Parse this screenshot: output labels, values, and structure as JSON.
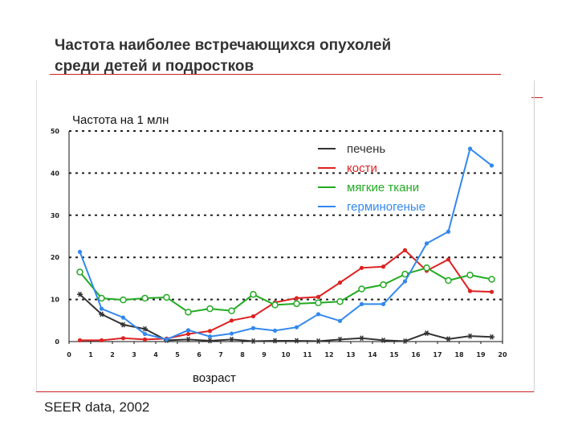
{
  "slide": {
    "title_line1": "Частота наиболее встречающихся опухолей",
    "title_line2": "среди детей и подростков",
    "source": "SEER data, 2002"
  },
  "chart_data": {
    "type": "line",
    "title": "",
    "ylabel": "Частота на 1 млн",
    "xlabel": "возраст",
    "x": [
      0.5,
      1.5,
      2.5,
      3.5,
      4.5,
      5.5,
      6.5,
      7.5,
      8.5,
      9.5,
      10.5,
      11.5,
      12.5,
      13.5,
      14.5,
      15.5,
      16.5,
      17.5,
      18.5,
      19.5
    ],
    "xticks": [
      "0",
      "1",
      "2",
      "3",
      "4",
      "5",
      "6",
      "7",
      "8",
      "9",
      "10",
      "11",
      "12",
      "13",
      "14",
      "15",
      "16",
      "17",
      "18",
      "19",
      "20"
    ],
    "yticks": [
      "0",
      "10",
      "20",
      "30",
      "40",
      "50"
    ],
    "xlim": [
      0,
      20
    ],
    "ylim": [
      0,
      50
    ],
    "grid": "horizontal dotted",
    "legend_position": "top-right",
    "series": [
      {
        "name": "печень",
        "color": "#333333",
        "marker": "star",
        "values": [
          11.2,
          6.5,
          4.0,
          3.0,
          0.3,
          0.5,
          0.2,
          0.5,
          0.1,
          0.2,
          0.2,
          0.1,
          0.5,
          0.8,
          0.3,
          0.1,
          2.0,
          0.6,
          1.3,
          1.1
        ]
      },
      {
        "name": "кости",
        "color": "#dd2222",
        "marker": "circle",
        "values": [
          0.3,
          0.3,
          0.8,
          0.5,
          0.7,
          1.8,
          2.5,
          5.0,
          6.0,
          9.3,
          10.3,
          10.6,
          14.0,
          17.5,
          17.8,
          21.7,
          16.8,
          19.5,
          12.0,
          11.8
        ]
      },
      {
        "name": "мягкие ткани",
        "color": "#22aa22",
        "marker": "open-circle",
        "values": [
          16.5,
          10.3,
          9.9,
          10.3,
          10.5,
          7.0,
          7.8,
          7.3,
          11.2,
          8.7,
          9.0,
          9.2,
          9.5,
          12.5,
          13.5,
          16.0,
          17.5,
          14.5,
          15.8,
          14.8
        ]
      },
      {
        "name": "герминогеные",
        "color": "#3388ee",
        "marker": "circle",
        "values": [
          21.3,
          7.8,
          5.7,
          1.8,
          0.5,
          2.7,
          1.2,
          1.9,
          3.2,
          2.6,
          3.4,
          6.5,
          4.9,
          8.9,
          8.9,
          14.3,
          23.3,
          26.1,
          45.8,
          41.8
        ]
      }
    ]
  }
}
